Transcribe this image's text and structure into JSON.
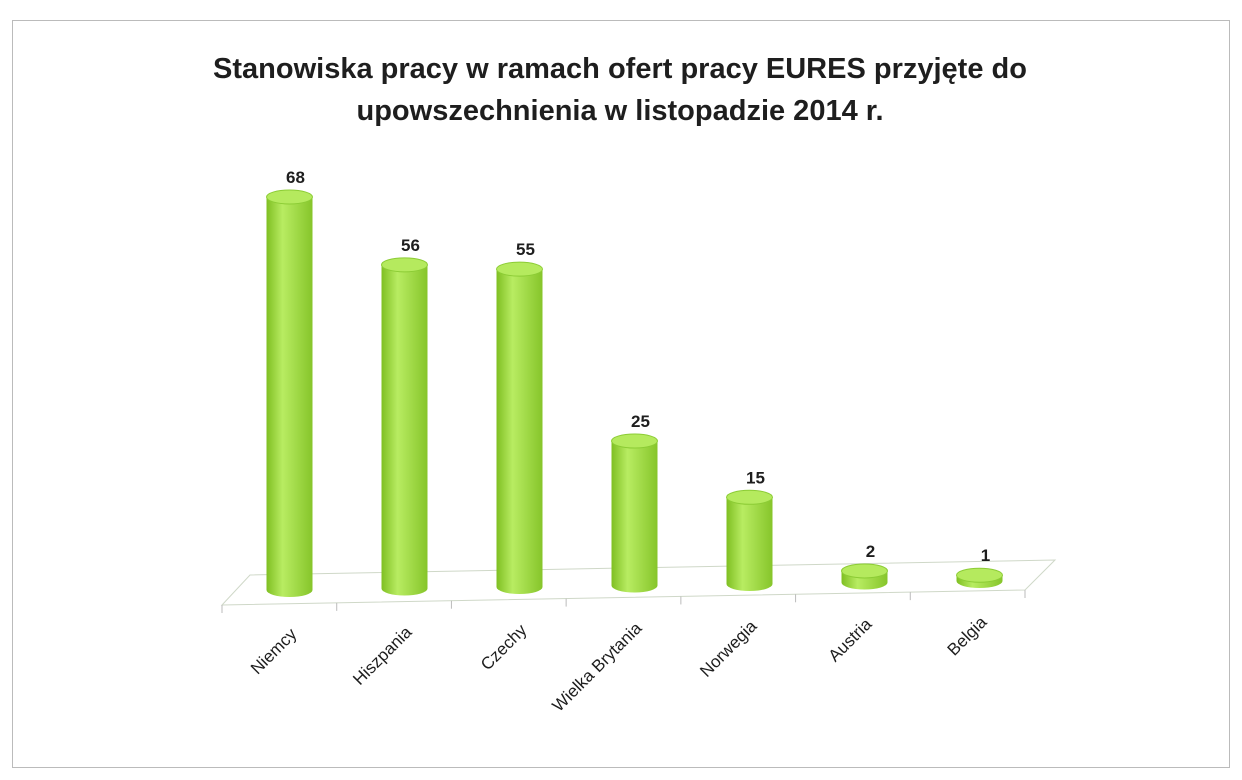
{
  "chart_data": {
    "type": "bar",
    "title": "Stanowiska pracy w ramach ofert pracy EURES przyjęte do upowszechnienia w listopadzie 2014 r.",
    "categories": [
      "Niemcy",
      "Hiszpania",
      "Czechy",
      "Wielka Brytania",
      "Norwegia",
      "Austria",
      "Belgia"
    ],
    "values": [
      68,
      56,
      55,
      25,
      15,
      2,
      1
    ],
    "color": "#a3dc48"
  }
}
